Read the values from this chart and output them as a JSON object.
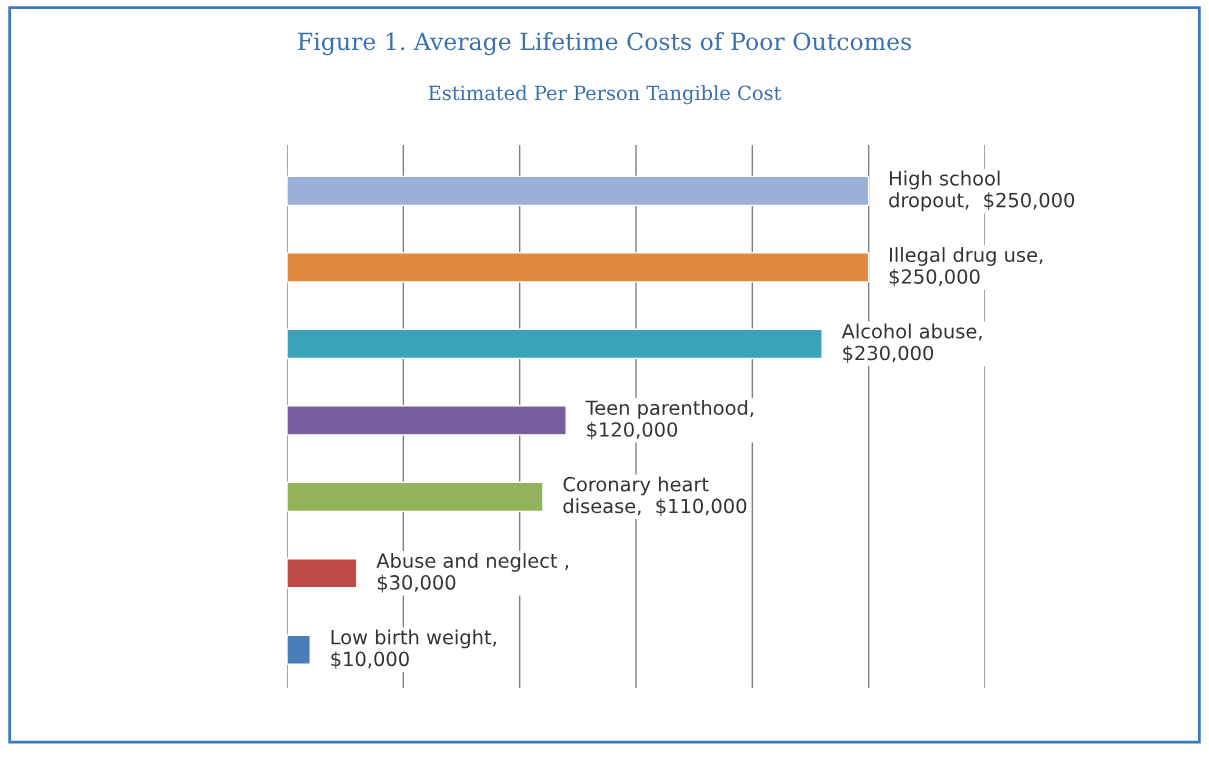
{
  "chart_data": {
    "type": "bar",
    "orientation": "horizontal",
    "title": "Figure 1. Average Lifetime Costs of Poor Outcomes",
    "subtitle": "Estimated Per Person Tangible Cost",
    "categories": [
      null,
      null,
      null,
      null,
      null,
      null,
      null
    ],
    "values": [
      250000,
      250000,
      230000,
      120000,
      110000,
      30000,
      10000
    ],
    "colors": [
      "#9bb0d6",
      "#e0893f",
      "#3aa3b8",
      "#7b5ea0",
      "#93b35a",
      "#bf4a47",
      "#4a7ebb"
    ],
    "value_labels": [
      "High school\ndropout,  $250,000",
      "Illegal drug use,\n$250,000",
      "Alcohol abuse,\n$230,000",
      "Teen parenthood,\n$120,000",
      "Coronary heart\ndisease,  $110,000",
      "Abuse and neglect ,\n$30,000",
      "Low birth weight,\n$10,000"
    ],
    "xlim": [
      0,
      300000
    ],
    "xticks": [
      {
        "value": 0,
        "label": null
      },
      {
        "value": 50000,
        "label": null
      },
      {
        "value": 100000,
        "label": null
      },
      {
        "value": 150000,
        "label": null
      },
      {
        "value": 200000,
        "label": null
      },
      {
        "value": 250000,
        "label": null
      },
      {
        "value": 300000,
        "label": null
      }
    ],
    "grid": "x"
  }
}
